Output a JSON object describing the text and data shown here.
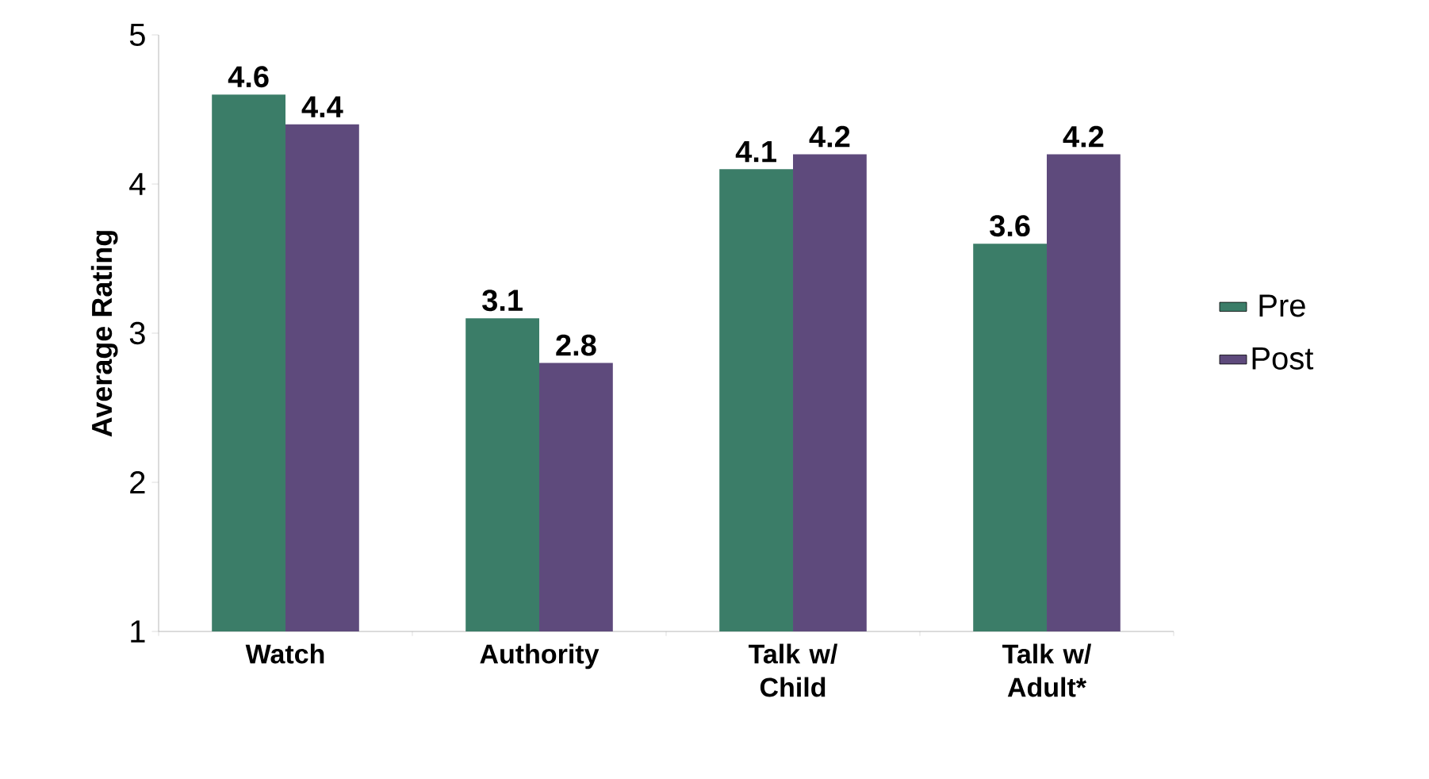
{
  "chart_data": {
    "type": "bar",
    "ylabel": "Average Rating",
    "categories": [
      "Watch",
      "Authority",
      "Talk w/ Child",
      "Talk w/ Adult*"
    ],
    "series": [
      {
        "name": "Pre",
        "color": "#3b7d68",
        "values": [
          4.6,
          3.1,
          4.1,
          3.6
        ]
      },
      {
        "name": "Post",
        "color": "#5e4a7c",
        "values": [
          4.4,
          2.8,
          4.2,
          4.2
        ]
      }
    ],
    "ylim": [
      1,
      5
    ],
    "yticks": [
      1,
      2,
      3,
      4,
      5
    ],
    "grid": false,
    "legend": "right",
    "data_labels": true
  }
}
